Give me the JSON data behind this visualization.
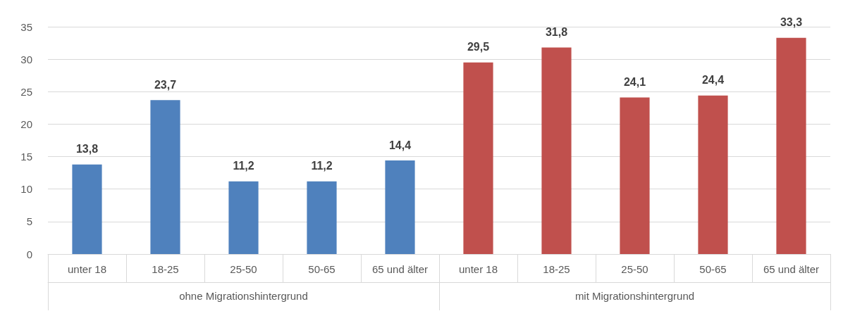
{
  "chart_data": {
    "type": "bar",
    "categories": [
      "unter 18",
      "18-25",
      "25-50",
      "50-65",
      "65 und älter",
      "unter 18",
      "18-25",
      "25-50",
      "50-65",
      "65 und älter"
    ],
    "series": [
      {
        "color": "#4f81bd",
        "values": [
          13.8,
          23.7,
          11.2,
          11.2,
          14.4,
          null,
          null,
          null,
          null,
          null
        ],
        "value_labels": [
          "13,8",
          "23,7",
          "11,2",
          "11,2",
          "14,4",
          null,
          null,
          null,
          null,
          null
        ]
      },
      {
        "color": "#c0504d",
        "values": [
          null,
          null,
          null,
          null,
          null,
          29.5,
          31.8,
          24.1,
          24.4,
          33.3
        ],
        "value_labels": [
          null,
          null,
          null,
          null,
          null,
          "29,5",
          "31,8",
          "24,1",
          "24,4",
          "33,3"
        ]
      }
    ],
    "ylim": [
      0,
      35
    ],
    "yticks": [
      0,
      5,
      10,
      15,
      20,
      25,
      30,
      35
    ],
    "annotations": [
      "ohne Migrationshintergrund",
      "mit Migrationshintergrund"
    ],
    "grid": "y"
  }
}
